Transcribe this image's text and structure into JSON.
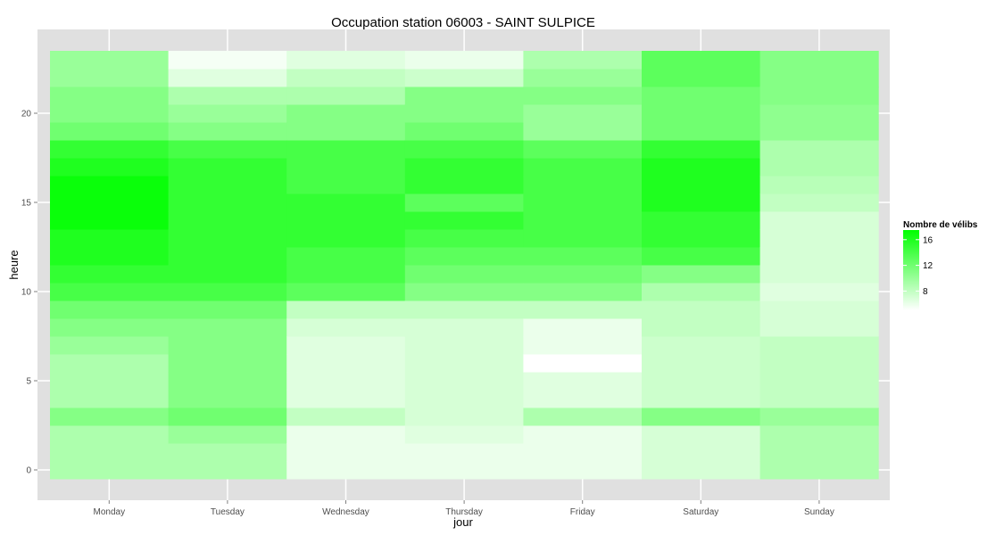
{
  "chart_data": {
    "type": "heatmap",
    "title": "Occupation station 06003 - SAINT SULPICE",
    "xlabel": "jour",
    "ylabel": "heure",
    "x_categories": [
      "Monday",
      "Tuesday",
      "Wednesday",
      "Thursday",
      "Friday",
      "Saturday",
      "Sunday"
    ],
    "y_values": [
      0,
      1,
      2,
      3,
      4,
      5,
      6,
      7,
      8,
      9,
      10,
      11,
      12,
      13,
      14,
      15,
      16,
      17,
      18,
      19,
      20,
      21,
      22,
      23
    ],
    "y_ticks": [
      0,
      5,
      10,
      15,
      20
    ],
    "ylim": [
      -0.5,
      23.5
    ],
    "grid": true,
    "legend": {
      "title": "Nombre de vélibs",
      "ticks": [
        8,
        12,
        16
      ],
      "position": "right",
      "range": [
        5,
        17.5
      ]
    },
    "colors": {
      "low": "#ffffff",
      "high": "#00ff00",
      "panel_background": "#e0e0e0",
      "grid": "#ffffff"
    },
    "values": [
      [
        9,
        9,
        9,
        11,
        9,
        9,
        9,
        10,
        11,
        12,
        14,
        15,
        16,
        16,
        17,
        17,
        17,
        16,
        15,
        12,
        11,
        11,
        10,
        10
      ],
      [
        9,
        9,
        10,
        12,
        11,
        11,
        11,
        11,
        11,
        12,
        14,
        15,
        15,
        15,
        15,
        15,
        15,
        15,
        14,
        11,
        10,
        9,
        6.5,
        5.5
      ],
      [
        6,
        6,
        6,
        8,
        6.5,
        6.5,
        6.5,
        6.5,
        7,
        8,
        13,
        14,
        14,
        15,
        15,
        15,
        14,
        14,
        14,
        11,
        11,
        9,
        8,
        6.5
      ],
      [
        6,
        6,
        6.5,
        7,
        7,
        7,
        7,
        7,
        7,
        8,
        11,
        12,
        13,
        14,
        15,
        13,
        15,
        15,
        14,
        12,
        11,
        11,
        7.5,
        6
      ],
      [
        6,
        6,
        6,
        9,
        6.5,
        6.5,
        5,
        6,
        6,
        8,
        11,
        12,
        13,
        14,
        14,
        14,
        14,
        14,
        13,
        10,
        10,
        11,
        10,
        9
      ],
      [
        7,
        7,
        7,
        11,
        7.5,
        7.5,
        7.5,
        7.5,
        8,
        8,
        9,
        11,
        14,
        15,
        15,
        16,
        16,
        16,
        15,
        12,
        12,
        12,
        13,
        13
      ],
      [
        9,
        9,
        9,
        10,
        8,
        8,
        8,
        8,
        7,
        7,
        6.5,
        7,
        7,
        7,
        7,
        8,
        8.5,
        9,
        9,
        10.5,
        10.5,
        11,
        11,
        11
      ]
    ]
  }
}
